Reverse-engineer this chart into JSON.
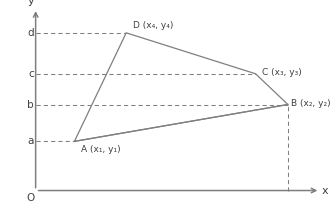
{
  "points": {
    "A": [
      0.22,
      0.32
    ],
    "B": [
      0.88,
      0.5
    ],
    "C": [
      0.78,
      0.65
    ],
    "D": [
      0.38,
      0.85
    ]
  },
  "labels": {
    "A": "A (x₁, y₁)",
    "B": "B (x₂, y₂)",
    "C": "C (x₃, y₃)",
    "D": "D (x₄, y₄)"
  },
  "y_tick_labels": [
    "a",
    "b",
    "c",
    "d"
  ],
  "y_tick_points": [
    "A",
    "B",
    "C",
    "D"
  ],
  "axis_color": "#7f7f7f",
  "line_color": "#7f7f7f",
  "dashed_color": "#7f7f7f",
  "text_color": "#404040",
  "background_color": "#ffffff",
  "x_axis_start": 0.1,
  "y_axis_start": 0.08,
  "x_axis_end": 0.98,
  "y_axis_end": 0.97,
  "figsize": [
    3.3,
    2.09
  ],
  "dpi": 100
}
